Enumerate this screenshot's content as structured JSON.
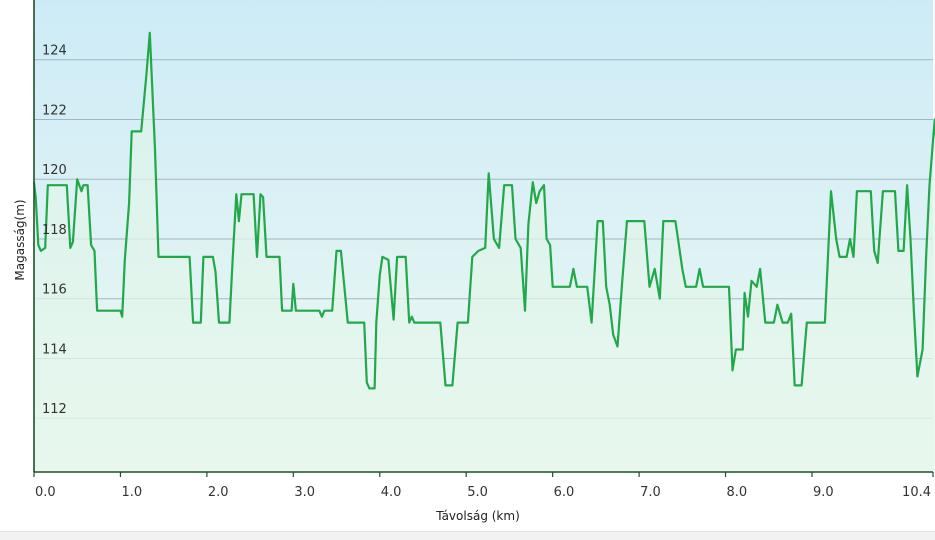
{
  "chart_data": {
    "type": "area",
    "xlabel": "Távolság  (km)",
    "ylabel": "Magasság(m)",
    "xlim": [
      0.0,
      10.4
    ],
    "ylim": [
      110.2,
      126.0
    ],
    "x_ticks": [
      {
        "value": 0.0,
        "label": "0.0"
      },
      {
        "value": 1.0,
        "label": "1.0"
      },
      {
        "value": 2.0,
        "label": "2.0"
      },
      {
        "value": 3.0,
        "label": "3.0"
      },
      {
        "value": 4.0,
        "label": "4.0"
      },
      {
        "value": 5.0,
        "label": "5.0"
      },
      {
        "value": 6.0,
        "label": "6.0"
      },
      {
        "value": 7.0,
        "label": "7.0"
      },
      {
        "value": 8.0,
        "label": "8.0"
      },
      {
        "value": 9.0,
        "label": "9.0"
      },
      {
        "value": 10.4,
        "label": "10.4"
      }
    ],
    "y_ticks": [
      {
        "value": 112,
        "label": "112"
      },
      {
        "value": 114,
        "label": "114"
      },
      {
        "value": 116,
        "label": "116"
      },
      {
        "value": 118,
        "label": "118"
      },
      {
        "value": 120,
        "label": "120"
      },
      {
        "value": 122,
        "label": "122"
      },
      {
        "value": 124,
        "label": "124"
      }
    ],
    "grid": "horizontal",
    "colors": {
      "line": "#22a84a",
      "grid": "#9fb7c4",
      "axis": "#1f4f2a",
      "background_top": "#cdebf7",
      "background_bottom": "#eef9f2"
    },
    "series": [
      {
        "points": [
          [
            0.0,
            119.9
          ],
          [
            0.02,
            119.4
          ],
          [
            0.05,
            117.8
          ],
          [
            0.08,
            117.6
          ],
          [
            0.13,
            117.7
          ],
          [
            0.16,
            119.8
          ],
          [
            0.26,
            119.8
          ],
          [
            0.38,
            119.8
          ],
          [
            0.42,
            117.7
          ],
          [
            0.45,
            117.9
          ],
          [
            0.5,
            120.0
          ],
          [
            0.55,
            119.6
          ],
          [
            0.57,
            119.8
          ],
          [
            0.62,
            119.8
          ],
          [
            0.66,
            117.8
          ],
          [
            0.7,
            117.6
          ],
          [
            0.73,
            115.6
          ],
          [
            0.85,
            115.6
          ],
          [
            1.0,
            115.6
          ],
          [
            1.02,
            115.4
          ],
          [
            1.05,
            117.3
          ],
          [
            1.1,
            119.2
          ],
          [
            1.13,
            121.6
          ],
          [
            1.24,
            121.6
          ],
          [
            1.3,
            123.5
          ],
          [
            1.34,
            124.9
          ],
          [
            1.4,
            121.0
          ],
          [
            1.44,
            117.4
          ],
          [
            1.6,
            117.4
          ],
          [
            1.7,
            117.4
          ],
          [
            1.8,
            117.4
          ],
          [
            1.84,
            115.2
          ],
          [
            1.93,
            115.2
          ],
          [
            1.96,
            117.4
          ],
          [
            2.07,
            117.4
          ],
          [
            2.1,
            116.9
          ],
          [
            2.14,
            115.2
          ],
          [
            2.26,
            115.2
          ],
          [
            2.3,
            117.4
          ],
          [
            2.34,
            119.5
          ],
          [
            2.37,
            118.6
          ],
          [
            2.4,
            119.5
          ],
          [
            2.54,
            119.5
          ],
          [
            2.58,
            117.4
          ],
          [
            2.62,
            119.5
          ],
          [
            2.65,
            119.4
          ],
          [
            2.69,
            117.4
          ],
          [
            2.84,
            117.4
          ],
          [
            2.87,
            115.6
          ],
          [
            2.98,
            115.6
          ],
          [
            3.0,
            116.5
          ],
          [
            3.03,
            115.6
          ],
          [
            3.3,
            115.6
          ],
          [
            3.33,
            115.4
          ],
          [
            3.36,
            115.6
          ],
          [
            3.45,
            115.6
          ],
          [
            3.5,
            117.6
          ],
          [
            3.55,
            117.6
          ],
          [
            3.63,
            115.2
          ],
          [
            3.82,
            115.2
          ],
          [
            3.85,
            113.2
          ],
          [
            3.88,
            113.0
          ],
          [
            3.94,
            113.0
          ],
          [
            3.96,
            115.2
          ],
          [
            4.0,
            116.8
          ],
          [
            4.03,
            117.4
          ],
          [
            4.1,
            117.3
          ],
          [
            4.16,
            115.3
          ],
          [
            4.2,
            117.4
          ],
          [
            4.3,
            117.4
          ],
          [
            4.34,
            115.2
          ],
          [
            4.37,
            115.4
          ],
          [
            4.4,
            115.2
          ],
          [
            4.7,
            115.2
          ],
          [
            4.76,
            113.1
          ],
          [
            4.84,
            113.1
          ],
          [
            4.9,
            115.2
          ],
          [
            5.02,
            115.2
          ],
          [
            5.07,
            117.4
          ],
          [
            5.14,
            117.6
          ],
          [
            5.22,
            117.7
          ],
          [
            5.26,
            120.2
          ],
          [
            5.32,
            118.0
          ],
          [
            5.38,
            117.7
          ],
          [
            5.44,
            119.8
          ],
          [
            5.53,
            119.8
          ],
          [
            5.57,
            118.0
          ],
          [
            5.63,
            117.7
          ],
          [
            5.68,
            115.6
          ],
          [
            5.72,
            118.5
          ],
          [
            5.77,
            119.9
          ],
          [
            5.81,
            119.2
          ],
          [
            5.85,
            119.6
          ],
          [
            5.9,
            119.8
          ],
          [
            5.93,
            118.0
          ],
          [
            5.97,
            117.8
          ],
          [
            6.0,
            116.4
          ],
          [
            6.1,
            116.4
          ],
          [
            6.2,
            116.4
          ],
          [
            6.24,
            117.0
          ],
          [
            6.28,
            116.4
          ],
          [
            6.4,
            116.4
          ],
          [
            6.45,
            115.2
          ],
          [
            6.52,
            118.6
          ],
          [
            6.58,
            118.6
          ],
          [
            6.62,
            116.4
          ],
          [
            6.66,
            115.8
          ],
          [
            6.7,
            114.8
          ],
          [
            6.75,
            114.4
          ],
          [
            6.8,
            116.4
          ],
          [
            6.86,
            118.6
          ],
          [
            7.06,
            118.6
          ],
          [
            7.12,
            116.4
          ],
          [
            7.18,
            117.0
          ],
          [
            7.24,
            116.0
          ],
          [
            7.28,
            118.6
          ],
          [
            7.42,
            118.6
          ],
          [
            7.46,
            117.8
          ],
          [
            7.5,
            117.0
          ],
          [
            7.54,
            116.4
          ],
          [
            7.66,
            116.4
          ],
          [
            7.7,
            117.0
          ],
          [
            7.74,
            116.4
          ],
          [
            8.0,
            116.4
          ],
          [
            8.04,
            116.4
          ],
          [
            8.08,
            113.6
          ],
          [
            8.12,
            114.3
          ],
          [
            8.2,
            114.3
          ],
          [
            8.22,
            116.2
          ],
          [
            8.26,
            115.4
          ],
          [
            8.3,
            116.6
          ],
          [
            8.36,
            116.4
          ],
          [
            8.4,
            117.0
          ],
          [
            8.46,
            115.2
          ],
          [
            8.56,
            115.2
          ],
          [
            8.6,
            115.8
          ],
          [
            8.64,
            115.4
          ],
          [
            8.66,
            115.2
          ],
          [
            8.72,
            115.2
          ],
          [
            8.76,
            115.5
          ],
          [
            8.8,
            113.1
          ],
          [
            8.88,
            113.1
          ],
          [
            8.94,
            115.2
          ],
          [
            9.15,
            115.2
          ],
          [
            9.22,
            119.6
          ],
          [
            9.28,
            118.0
          ],
          [
            9.32,
            117.4
          ],
          [
            9.4,
            117.4
          ],
          [
            9.44,
            118.0
          ],
          [
            9.48,
            117.4
          ],
          [
            9.52,
            119.6
          ],
          [
            9.68,
            119.6
          ],
          [
            9.72,
            117.6
          ],
          [
            9.76,
            117.2
          ],
          [
            9.82,
            119.6
          ],
          [
            9.96,
            119.6
          ],
          [
            10.0,
            117.6
          ],
          [
            10.06,
            117.6
          ],
          [
            10.1,
            119.8
          ],
          [
            10.14,
            118.0
          ],
          [
            10.18,
            115.5
          ],
          [
            10.22,
            113.4
          ],
          [
            10.28,
            114.3
          ],
          [
            10.32,
            117.4
          ],
          [
            10.36,
            119.8
          ],
          [
            10.42,
            122.0
          ],
          [
            10.46,
            120.4
          ],
          [
            10.5,
            122.1
          ]
        ]
      }
    ]
  }
}
